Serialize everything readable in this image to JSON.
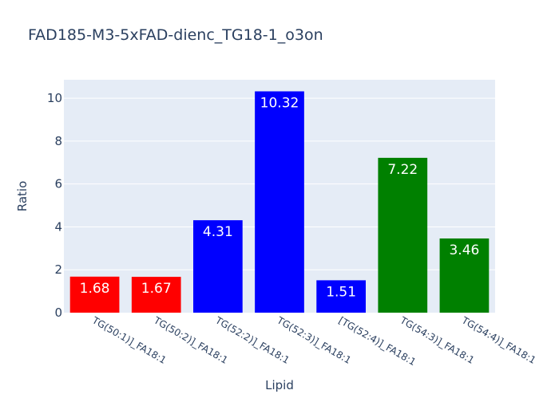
{
  "chart_data": {
    "type": "bar",
    "title": "FAD185-M3-5xFAD-dienc_TG18-1_o3on",
    "xlabel": "Lipid",
    "ylabel": "Ratio",
    "categories": [
      "TG(50:1)]_FA18:1",
      "TG(50:2)]_FA18:1",
      "TG(52:2)]_FA18:1",
      "TG(52:3)]_FA18:1",
      "[TG(52:4)]_FA18:1",
      "TG(54:3)]_FA18:1",
      "TG(54:4)]_FA18:1"
    ],
    "values": [
      1.68,
      1.67,
      4.31,
      10.32,
      1.51,
      7.22,
      3.46
    ],
    "data_labels": [
      "1.68",
      "1.67",
      "4.31",
      "10.32",
      "1.51",
      "7.22",
      "3.46"
    ],
    "bar_colors": [
      "#ff0000",
      "#ff0000",
      "#0000ff",
      "#0000ff",
      "#0000ff",
      "#008000",
      "#008000"
    ],
    "ylim": [
      0,
      10.86
    ],
    "yticks": [
      0,
      2,
      4,
      6,
      8,
      10
    ],
    "grid": true,
    "legend": "none",
    "plot_background": "#e5ecf6",
    "text_color": "#2a3f5f"
  }
}
